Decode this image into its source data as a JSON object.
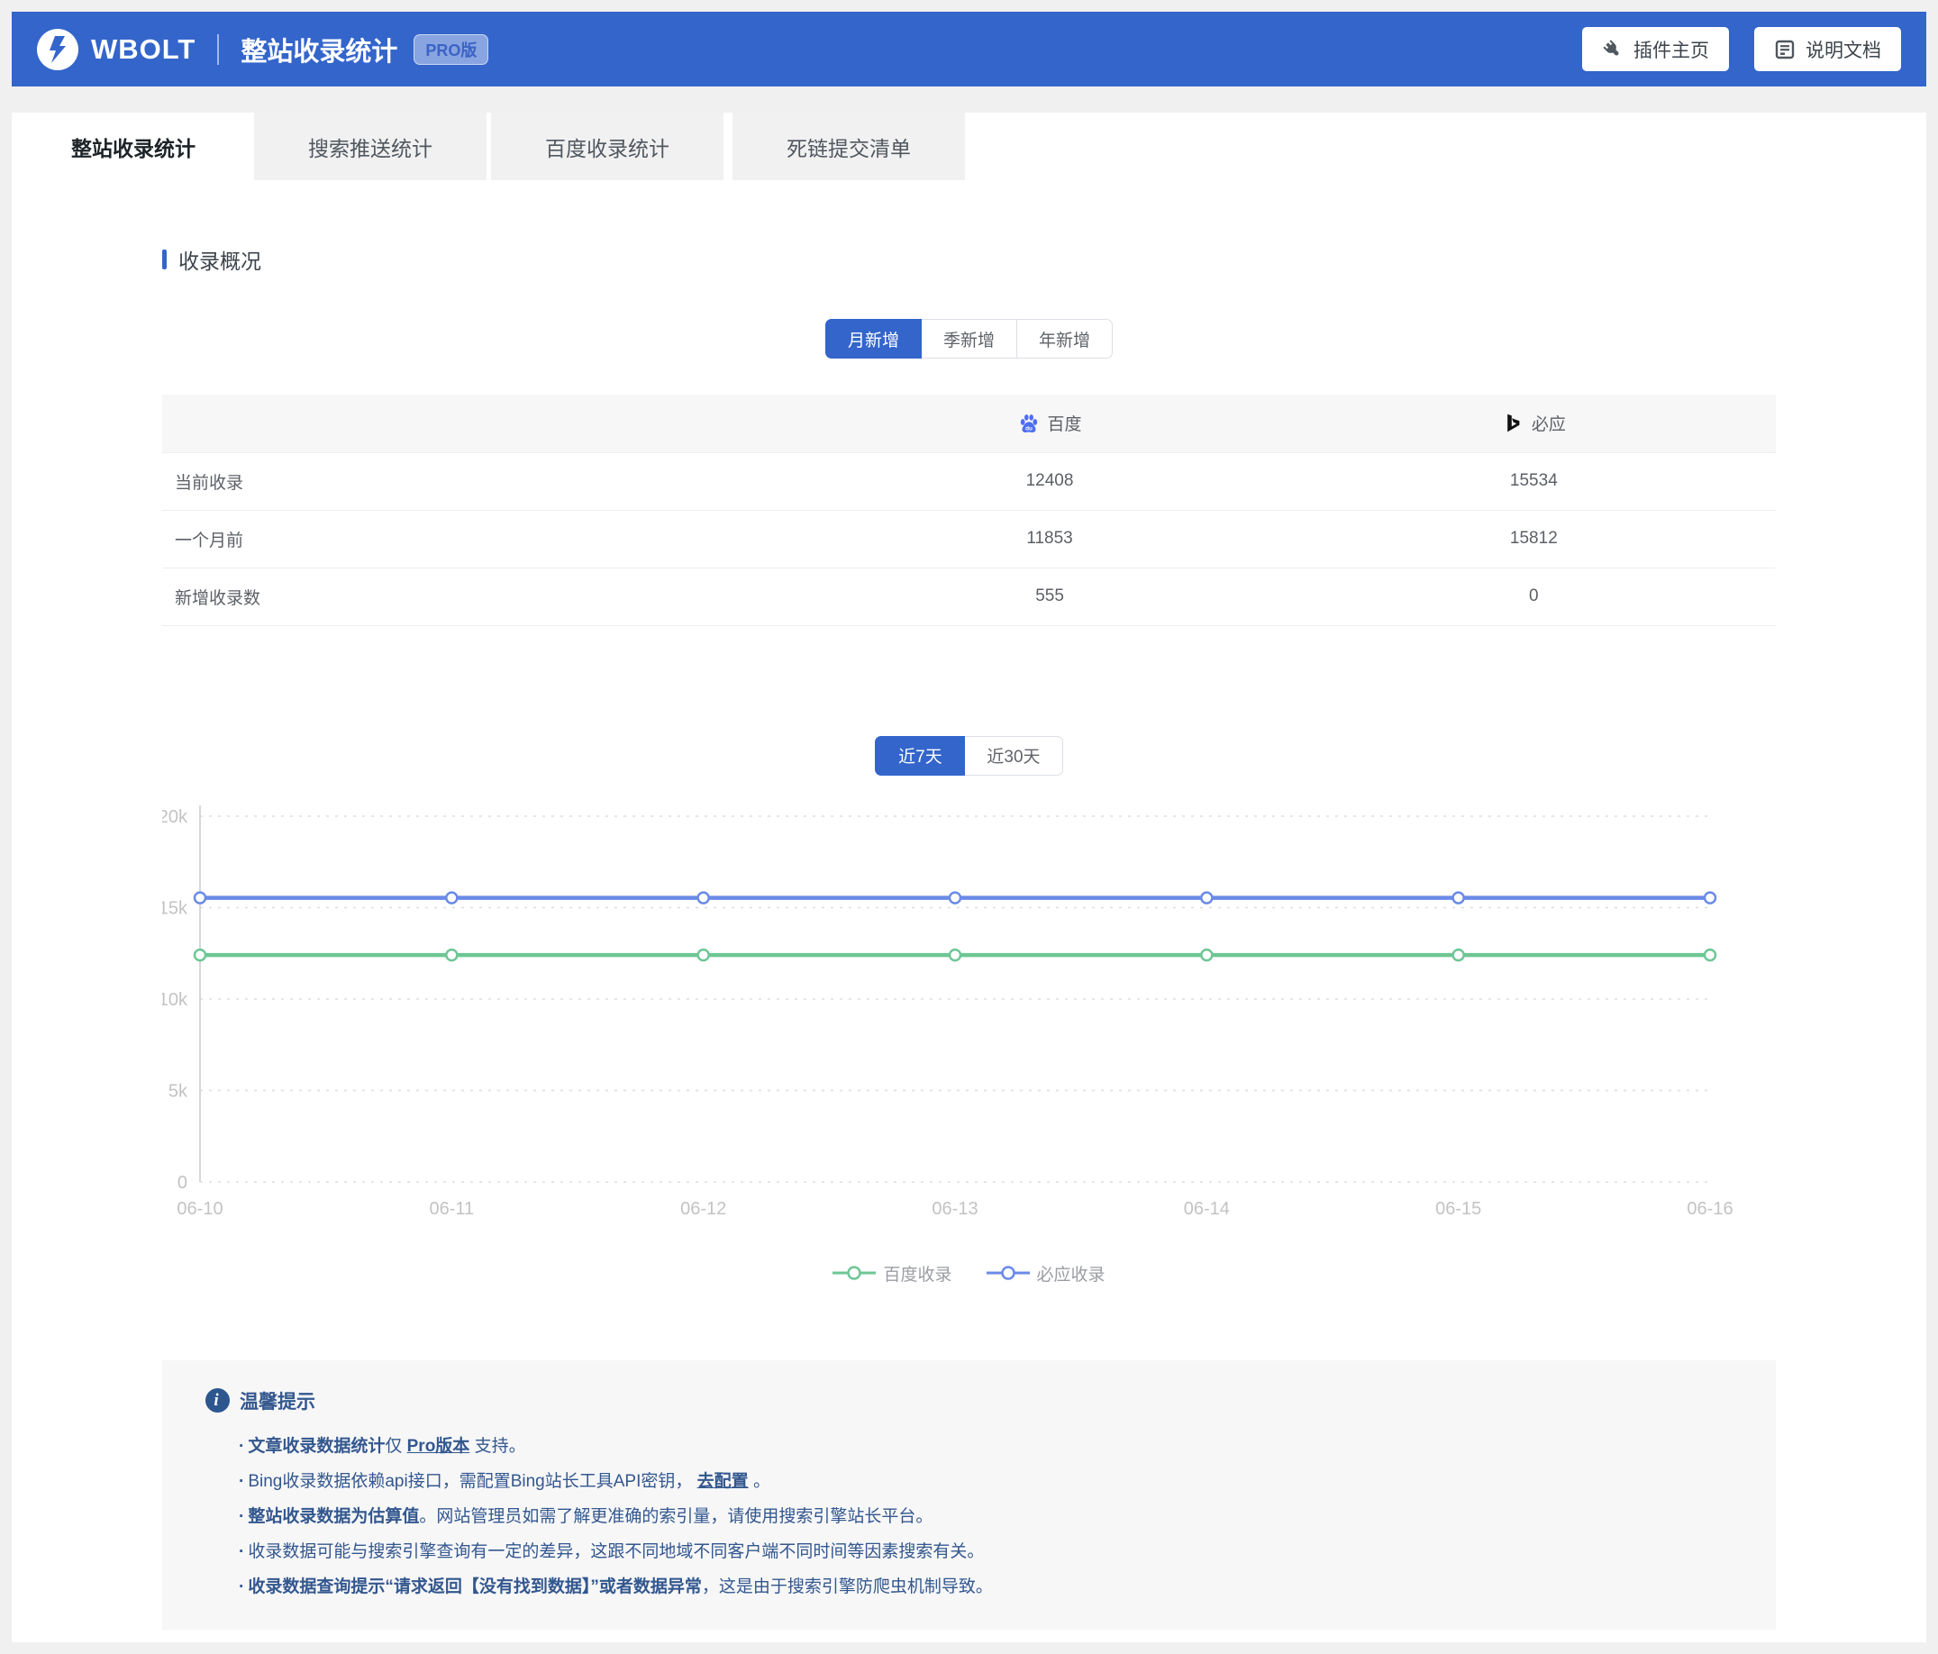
{
  "header": {
    "brand": "WBOLT",
    "title": "整站收录统计",
    "badge": "PRO版",
    "buttons": [
      {
        "label": "插件主页",
        "icon": "plug-icon"
      },
      {
        "label": "说明文档",
        "icon": "document-icon"
      }
    ]
  },
  "tabs": [
    {
      "label": "整站收录统计",
      "active": true
    },
    {
      "label": "搜索推送统计",
      "active": false
    },
    {
      "label": "百度收录统计",
      "active": false
    },
    {
      "label": "死链提交清单",
      "active": false
    }
  ],
  "section": {
    "title": "收录概况"
  },
  "period_toggle": {
    "options": [
      "月新增",
      "季新增",
      "年新增"
    ],
    "active": "月新增"
  },
  "summary_table": {
    "columns": [
      {
        "label": "百度",
        "icon": "baidu-icon",
        "icon_text": "du"
      },
      {
        "label": "必应",
        "icon": "bing-icon"
      }
    ],
    "rows": [
      {
        "label": "当前收录",
        "baidu": "12408",
        "bing": "15534"
      },
      {
        "label": "一个月前",
        "baidu": "11853",
        "bing": "15812"
      },
      {
        "label": "新增收录数",
        "baidu": "555",
        "bing": "0"
      }
    ]
  },
  "range_toggle": {
    "options": [
      "近7天",
      "近30天"
    ],
    "active": "近7天"
  },
  "chart_data": {
    "type": "line",
    "x": [
      "06-10",
      "06-11",
      "06-12",
      "06-13",
      "06-14",
      "06-15",
      "06-16"
    ],
    "series": [
      {
        "name": "百度收录",
        "color": "#6ec695",
        "values": [
          12408,
          12408,
          12408,
          12408,
          12408,
          12408,
          12408
        ]
      },
      {
        "name": "必应收录",
        "color": "#6b8ae8",
        "values": [
          15534,
          15534,
          15534,
          15534,
          15534,
          15534,
          15534
        ]
      }
    ],
    "ylim": [
      0,
      20000
    ],
    "yticks": [
      {
        "value": 0,
        "label": "0"
      },
      {
        "value": 5000,
        "label": "5k"
      },
      {
        "value": 10000,
        "label": "10k"
      },
      {
        "value": 15000,
        "label": "15k"
      },
      {
        "value": 20000,
        "label": "20k"
      }
    ],
    "grid": "dashed-horizontal",
    "legend_position": "bottom"
  },
  "notice": {
    "title": "温馨提示",
    "items": [
      {
        "segments": [
          {
            "text": "文章收录数据统计",
            "style": "bold"
          },
          {
            "text": "仅 ",
            "style": "normal"
          },
          {
            "text": "Pro版本",
            "style": "link"
          },
          {
            "text": " 支持。",
            "style": "normal"
          }
        ]
      },
      {
        "segments": [
          {
            "text": "Bing收录数据依赖api接口，需配置Bing站长工具API密钥， ",
            "style": "normal"
          },
          {
            "text": "去配置",
            "style": "link"
          },
          {
            "text": " 。",
            "style": "normal"
          }
        ]
      },
      {
        "segments": [
          {
            "text": "整站收录数据为估算值",
            "style": "bold"
          },
          {
            "text": "。网站管理员如需了解更准确的索引量，请使用搜索引擎站长平台。",
            "style": "normal"
          }
        ]
      },
      {
        "segments": [
          {
            "text": "收录数据可能与搜索引擎查询有一定的差异，这跟不同地域不同客户端不同时间等因素搜索有关。",
            "style": "normal"
          }
        ]
      },
      {
        "segments": [
          {
            "text": "收录数据查询提示“请求返回【没有找到数据】”或者数据异常",
            "style": "bold"
          },
          {
            "text": "，这是由于搜索引擎防爬虫机制导致。",
            "style": "normal"
          }
        ]
      }
    ]
  },
  "colors": {
    "accent": "#3365cb",
    "baidu_icon": "#4e6ef2",
    "bing_icon": "#111111",
    "notice_text": "#33578e",
    "chart_green": "#6ec695",
    "chart_blue": "#6b8ae8"
  }
}
